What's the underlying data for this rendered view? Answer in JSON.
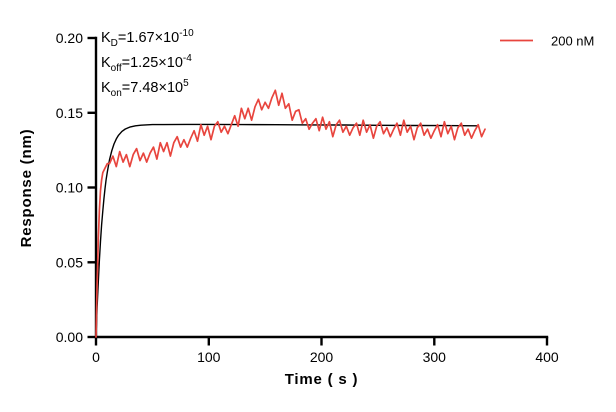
{
  "annotation": {
    "lines": [
      {
        "base": "K",
        "sub": "D",
        "mid": "=1.67×10",
        "sup": "-10"
      },
      {
        "base": "K",
        "sub": "off",
        "mid": "=1.25×10",
        "sup": "-4"
      },
      {
        "base": "K",
        "sub": "on",
        "mid": "=7.48×10",
        "sup": "5"
      }
    ]
  },
  "legend": {
    "label": "200 nM",
    "color": "#e8453e"
  },
  "chart_data": {
    "type": "line",
    "title": "",
    "xlabel": "Time ( s )",
    "ylabel": "Response (nm)",
    "xlim": [
      0,
      400
    ],
    "ylim": [
      0,
      0.2
    ],
    "x_tick_labels": [
      "0",
      "100",
      "200",
      "300",
      "400"
    ],
    "x_tick_values": [
      0,
      100,
      200,
      300,
      400
    ],
    "y_tick_labels": [
      "0.00",
      "0.05",
      "0.10",
      "0.15",
      "0.20"
    ],
    "y_tick_values": [
      0,
      0.05,
      0.1,
      0.15,
      0.2
    ],
    "grid": false,
    "legend_position": "top-right",
    "kinetics": {
      "KD": "1.67×10^-10",
      "Koff": "1.25×10^-4",
      "Kon": "7.48×10^5"
    },
    "series": [
      {
        "name": "200 nM",
        "role": "measured-response",
        "color": "#e8453e",
        "stroke_width": 1.7,
        "points": [
          [
            0,
            0
          ],
          [
            1,
            0.035
          ],
          [
            2,
            0.065
          ],
          [
            3,
            0.085
          ],
          [
            4,
            0.098
          ],
          [
            5,
            0.105
          ],
          [
            6,
            0.11
          ],
          [
            8,
            0.113
          ],
          [
            10,
            0.116
          ],
          [
            12,
            0.116
          ],
          [
            15,
            0.121
          ],
          [
            18,
            0.114
          ],
          [
            21,
            0.124
          ],
          [
            24,
            0.117
          ],
          [
            27,
            0.122
          ],
          [
            30,
            0.114
          ],
          [
            33,
            0.122
          ],
          [
            36,
            0.126
          ],
          [
            39,
            0.118
          ],
          [
            42,
            0.123
          ],
          [
            45,
            0.117
          ],
          [
            48,
            0.123
          ],
          [
            51,
            0.127
          ],
          [
            54,
            0.119
          ],
          [
            57,
            0.13
          ],
          [
            60,
            0.124
          ],
          [
            63,
            0.13
          ],
          [
            66,
            0.121
          ],
          [
            69,
            0.13
          ],
          [
            72,
            0.134
          ],
          [
            75,
            0.127
          ],
          [
            78,
            0.132
          ],
          [
            81,
            0.127
          ],
          [
            84,
            0.133
          ],
          [
            87,
            0.138
          ],
          [
            90,
            0.131
          ],
          [
            93,
            0.142
          ],
          [
            96,
            0.135
          ],
          [
            99,
            0.141
          ],
          [
            102,
            0.132
          ],
          [
            105,
            0.141
          ],
          [
            108,
            0.144
          ],
          [
            111,
            0.137
          ],
          [
            114,
            0.141
          ],
          [
            117,
            0.136
          ],
          [
            120,
            0.142
          ],
          [
            123,
            0.148
          ],
          [
            126,
            0.141
          ],
          [
            129,
            0.153
          ],
          [
            132,
            0.146
          ],
          [
            135,
            0.153
          ],
          [
            138,
            0.145
          ],
          [
            141,
            0.154
          ],
          [
            144,
            0.159
          ],
          [
            147,
            0.152
          ],
          [
            150,
            0.157
          ],
          [
            153,
            0.153
          ],
          [
            156,
            0.16
          ],
          [
            159,
            0.165
          ],
          [
            162,
            0.155
          ],
          [
            165,
            0.163
          ],
          [
            168,
            0.153
          ],
          [
            171,
            0.156
          ],
          [
            174,
            0.145
          ],
          [
            177,
            0.151
          ],
          [
            180,
            0.152
          ],
          [
            183,
            0.143
          ],
          [
            186,
            0.146
          ],
          [
            189,
            0.139
          ],
          [
            192,
            0.143
          ],
          [
            195,
            0.146
          ],
          [
            198,
            0.138
          ],
          [
            201,
            0.147
          ],
          [
            204,
            0.139
          ],
          [
            207,
            0.144
          ],
          [
            210,
            0.134
          ],
          [
            213,
            0.142
          ],
          [
            216,
            0.145
          ],
          [
            219,
            0.137
          ],
          [
            222,
            0.141
          ],
          [
            225,
            0.135
          ],
          [
            228,
            0.14
          ],
          [
            231,
            0.143
          ],
          [
            234,
            0.135
          ],
          [
            237,
            0.145
          ],
          [
            240,
            0.137
          ],
          [
            243,
            0.142
          ],
          [
            246,
            0.133
          ],
          [
            249,
            0.141
          ],
          [
            252,
            0.144
          ],
          [
            255,
            0.136
          ],
          [
            258,
            0.14
          ],
          [
            261,
            0.134
          ],
          [
            264,
            0.139
          ],
          [
            267,
            0.143
          ],
          [
            270,
            0.135
          ],
          [
            273,
            0.145
          ],
          [
            276,
            0.137
          ],
          [
            279,
            0.141
          ],
          [
            282,
            0.132
          ],
          [
            285,
            0.14
          ],
          [
            288,
            0.143
          ],
          [
            291,
            0.135
          ],
          [
            294,
            0.139
          ],
          [
            297,
            0.133
          ],
          [
            300,
            0.138
          ],
          [
            303,
            0.142
          ],
          [
            306,
            0.134
          ],
          [
            309,
            0.144
          ],
          [
            312,
            0.136
          ],
          [
            315,
            0.141
          ],
          [
            318,
            0.132
          ],
          [
            321,
            0.14
          ],
          [
            324,
            0.143
          ],
          [
            327,
            0.135
          ],
          [
            330,
            0.139
          ],
          [
            333,
            0.133
          ],
          [
            336,
            0.138
          ],
          [
            339,
            0.142
          ],
          [
            342,
            0.134
          ],
          [
            345,
            0.139
          ]
        ]
      },
      {
        "name": "kinetic fit",
        "role": "fit-curve",
        "color": "#000000",
        "stroke_width": 1.4,
        "points": [
          [
            0,
            0
          ],
          [
            1,
            0.0198
          ],
          [
            2,
            0.0368
          ],
          [
            3,
            0.0515
          ],
          [
            4,
            0.0641
          ],
          [
            5,
            0.0749
          ],
          [
            6,
            0.0843
          ],
          [
            7,
            0.0923
          ],
          [
            8,
            0.0992
          ],
          [
            9,
            0.1052
          ],
          [
            10,
            0.1103
          ],
          [
            12,
            0.1185
          ],
          [
            14,
            0.1246
          ],
          [
            16,
            0.1291
          ],
          [
            18,
            0.1325
          ],
          [
            20,
            0.1349
          ],
          [
            23,
            0.1375
          ],
          [
            26,
            0.1391
          ],
          [
            30,
            0.1404
          ],
          [
            35,
            0.1413
          ],
          [
            40,
            0.1417
          ],
          [
            50,
            0.1421
          ],
          [
            60,
            0.1421
          ],
          [
            80,
            0.1422
          ],
          [
            100,
            0.1422
          ],
          [
            130,
            0.1421
          ],
          [
            160,
            0.142
          ],
          [
            190,
            0.1419
          ],
          [
            220,
            0.1418
          ],
          [
            250,
            0.1416
          ],
          [
            280,
            0.1415
          ],
          [
            310,
            0.1414
          ],
          [
            338,
            0.1413
          ]
        ]
      }
    ]
  }
}
